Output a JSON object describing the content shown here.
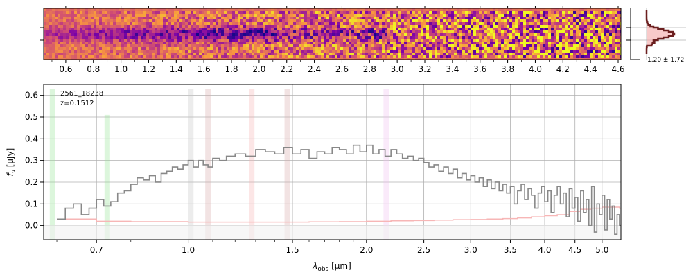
{
  "chart_data": [
    {
      "type": "heatmap",
      "panel": "2d-spectrum",
      "top_ticks": [
        "0.6",
        "0.8",
        "1.0",
        "1.2",
        "1.4",
        "1.6",
        "1.8",
        "2.0",
        "2.2",
        "2.4",
        "2.6",
        "2.8",
        "3.0",
        "3.2",
        "3.4",
        "3.6",
        "3.8",
        "4.0",
        "4.2",
        "4.4",
        "4.6"
      ],
      "top_tick_values": [
        0.6,
        0.8,
        1.0,
        1.2,
        1.4,
        1.6,
        1.8,
        2.0,
        2.2,
        2.4,
        2.6,
        2.8,
        3.0,
        3.2,
        3.4,
        3.6,
        3.8,
        4.0,
        4.2,
        4.4,
        4.6
      ],
      "xlim": [
        0.44,
        4.62
      ],
      "colormap": [
        "#0d0887",
        "#7e03a8",
        "#cc4778",
        "#f89540",
        "#f0f921"
      ],
      "background_color": "#fdb42f"
    },
    {
      "type": "line",
      "panel": "spatial-profile",
      "profile_label": "1.20 ± 1.72",
      "fill_color": "#f4a6a6",
      "line_color": "#6b1f1f"
    },
    {
      "type": "line",
      "panel": "1d-spectrum",
      "annotation": [
        "2561_18238",
        "z=0.1512"
      ],
      "xlabel_main": "λ",
      "xlabel_sub": "obs",
      "xlabel_unit": " [μm]",
      "ylabel_main": "f",
      "ylabel_sub": "ν",
      "ylabel_unit": " [μJy]",
      "x_ticks": [
        "0.7",
        "1.0",
        "1.5",
        "2.0",
        "2.5",
        "3.0",
        "3.5",
        "4.0",
        "4.5",
        "5.0"
      ],
      "x_tick_values": [
        0.7,
        1.0,
        1.5,
        2.0,
        2.5,
        3.0,
        3.5,
        4.0,
        4.5,
        5.0
      ],
      "y_ticks": [
        "0.0",
        "0.1",
        "0.2",
        "0.3",
        "0.4",
        "0.5",
        "0.6"
      ],
      "y_tick_values": [
        0.0,
        0.1,
        0.2,
        0.3,
        0.4,
        0.5,
        0.6
      ],
      "xlim": [
        0.57,
        5.38
      ],
      "ylim": [
        -0.065,
        0.65
      ],
      "grid": true,
      "flux_color": "#888888",
      "error_color": "#f7b6b6",
      "line_markers": [
        {
          "wave": 0.59,
          "color": "#9be59b",
          "height": 0.63
        },
        {
          "wave": 0.73,
          "color": "#9be59b",
          "height": 0.51
        },
        {
          "wave": 1.01,
          "color": "#c8c8c8",
          "height": 0.63
        },
        {
          "wave": 1.08,
          "color": "#d9b0b0",
          "height": 0.63
        },
        {
          "wave": 1.28,
          "color": "#f7b6b6",
          "height": 0.63
        },
        {
          "wave": 1.47,
          "color": "#d9b0b0",
          "height": 0.63
        },
        {
          "wave": 2.16,
          "color": "#f2c2f2",
          "height": 0.63
        }
      ],
      "flux": [
        [
          0.6,
          0.03
        ],
        [
          0.62,
          0.08
        ],
        [
          0.64,
          0.1
        ],
        [
          0.66,
          0.05
        ],
        [
          0.68,
          0.08
        ],
        [
          0.7,
          0.12
        ],
        [
          0.72,
          0.09
        ],
        [
          0.74,
          0.11
        ],
        [
          0.76,
          0.15
        ],
        [
          0.78,
          0.16
        ],
        [
          0.8,
          0.19
        ],
        [
          0.82,
          0.22
        ],
        [
          0.84,
          0.21
        ],
        [
          0.86,
          0.23
        ],
        [
          0.88,
          0.2
        ],
        [
          0.9,
          0.24
        ],
        [
          0.92,
          0.25
        ],
        [
          0.94,
          0.27
        ],
        [
          0.96,
          0.26
        ],
        [
          0.98,
          0.28
        ],
        [
          1.0,
          0.3
        ],
        [
          1.02,
          0.27
        ],
        [
          1.04,
          0.3
        ],
        [
          1.06,
          0.28
        ],
        [
          1.08,
          0.27
        ],
        [
          1.1,
          0.31
        ],
        [
          1.13,
          0.3
        ],
        [
          1.16,
          0.32
        ],
        [
          1.2,
          0.33
        ],
        [
          1.25,
          0.32
        ],
        [
          1.3,
          0.35
        ],
        [
          1.35,
          0.34
        ],
        [
          1.4,
          0.33
        ],
        [
          1.45,
          0.36
        ],
        [
          1.5,
          0.33
        ],
        [
          1.55,
          0.35
        ],
        [
          1.6,
          0.31
        ],
        [
          1.65,
          0.34
        ],
        [
          1.7,
          0.33
        ],
        [
          1.75,
          0.36
        ],
        [
          1.8,
          0.35
        ],
        [
          1.85,
          0.33
        ],
        [
          1.9,
          0.37
        ],
        [
          1.95,
          0.34
        ],
        [
          2.0,
          0.37
        ],
        [
          2.05,
          0.33
        ],
        [
          2.1,
          0.35
        ],
        [
          2.15,
          0.32
        ],
        [
          2.2,
          0.35
        ],
        [
          2.25,
          0.33
        ],
        [
          2.3,
          0.31
        ],
        [
          2.35,
          0.32
        ],
        [
          2.4,
          0.3
        ],
        [
          2.45,
          0.31
        ],
        [
          2.5,
          0.29
        ],
        [
          2.55,
          0.27
        ],
        [
          2.6,
          0.28
        ],
        [
          2.65,
          0.25
        ],
        [
          2.7,
          0.27
        ],
        [
          2.75,
          0.24
        ],
        [
          2.8,
          0.26
        ],
        [
          2.85,
          0.22
        ],
        [
          2.9,
          0.24
        ],
        [
          2.95,
          0.21
        ],
        [
          3.0,
          0.23
        ],
        [
          3.05,
          0.2
        ],
        [
          3.1,
          0.22
        ],
        [
          3.15,
          0.18
        ],
        [
          3.2,
          0.21
        ],
        [
          3.25,
          0.17
        ],
        [
          3.3,
          0.2
        ],
        [
          3.35,
          0.16
        ],
        [
          3.4,
          0.19
        ],
        [
          3.45,
          0.15
        ],
        [
          3.5,
          0.18
        ],
        [
          3.55,
          0.1
        ],
        [
          3.6,
          0.16
        ],
        [
          3.65,
          0.19
        ],
        [
          3.7,
          0.12
        ],
        [
          3.75,
          0.17
        ],
        [
          3.8,
          0.14
        ],
        [
          3.85,
          0.08
        ],
        [
          3.9,
          0.15
        ],
        [
          3.95,
          0.18
        ],
        [
          4.0,
          0.11
        ],
        [
          4.05,
          0.16
        ],
        [
          4.1,
          0.06
        ],
        [
          4.15,
          0.14
        ],
        [
          4.2,
          0.18
        ],
        [
          4.25,
          0.1
        ],
        [
          4.3,
          0.15
        ],
        [
          4.35,
          0.04
        ],
        [
          4.4,
          0.17
        ],
        [
          4.45,
          0.08
        ],
        [
          4.5,
          0.13
        ],
        [
          4.55,
          0.02
        ],
        [
          4.6,
          0.16
        ],
        [
          4.65,
          0.06
        ],
        [
          4.7,
          0.12
        ],
        [
          4.75,
          0.0
        ],
        [
          4.8,
          0.18
        ],
        [
          4.85,
          -0.03
        ],
        [
          4.9,
          0.1
        ],
        [
          4.95,
          0.05
        ],
        [
          5.0,
          0.14
        ],
        [
          5.05,
          -0.02
        ],
        [
          5.1,
          0.12
        ],
        [
          5.15,
          0.03
        ],
        [
          5.2,
          0.09
        ],
        [
          5.25,
          -0.04
        ],
        [
          5.3,
          0.05
        ],
        [
          5.35,
          0.0
        ]
      ],
      "error": [
        [
          0.6,
          0.03
        ],
        [
          0.7,
          0.02
        ],
        [
          0.8,
          0.018
        ],
        [
          0.9,
          0.018
        ],
        [
          1.0,
          0.016
        ],
        [
          1.2,
          0.016
        ],
        [
          1.4,
          0.016
        ],
        [
          1.6,
          0.017
        ],
        [
          1.8,
          0.018
        ],
        [
          2.0,
          0.02
        ],
        [
          2.2,
          0.022
        ],
        [
          2.4,
          0.023
        ],
        [
          2.6,
          0.025
        ],
        [
          2.8,
          0.027
        ],
        [
          3.0,
          0.028
        ],
        [
          3.2,
          0.03
        ],
        [
          3.4,
          0.032
        ],
        [
          3.6,
          0.035
        ],
        [
          3.8,
          0.04
        ],
        [
          4.0,
          0.045
        ],
        [
          4.2,
          0.05
        ],
        [
          4.4,
          0.065
        ],
        [
          4.6,
          0.075
        ],
        [
          4.8,
          0.08
        ],
        [
          5.0,
          0.085
        ],
        [
          5.2,
          0.085
        ],
        [
          5.35,
          0.08
        ]
      ]
    }
  ]
}
